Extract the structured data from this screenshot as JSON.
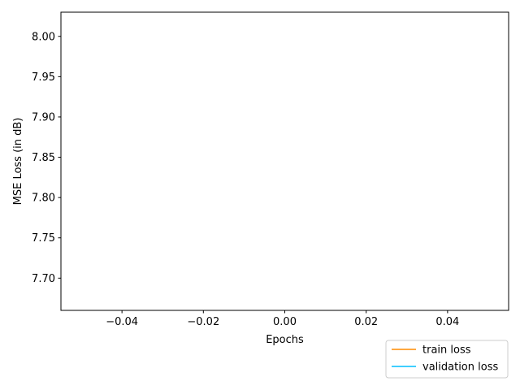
{
  "chart_data": {
    "type": "line",
    "xlabel": "Epochs",
    "ylabel": "MSE Loss (in dB)",
    "xlim": [
      -0.055,
      0.055
    ],
    "ylim": [
      7.66,
      8.03
    ],
    "xticks": [
      -0.04,
      -0.02,
      0.0,
      0.02,
      0.04
    ],
    "xtick_labels": [
      "−0.04",
      "−0.02",
      "0.00",
      "0.02",
      "0.04"
    ],
    "yticks": [
      7.7,
      7.75,
      7.8,
      7.85,
      7.9,
      7.95,
      8.0
    ],
    "ytick_labels": [
      "7.70",
      "7.75",
      "7.80",
      "7.85",
      "7.90",
      "7.95",
      "8.00"
    ],
    "grid": false,
    "legend_position": "below-right",
    "series": [
      {
        "name": "train loss",
        "color": "#ff8c00",
        "x": [],
        "y": []
      },
      {
        "name": "validation loss",
        "color": "#00bfff",
        "x": [],
        "y": []
      }
    ]
  }
}
